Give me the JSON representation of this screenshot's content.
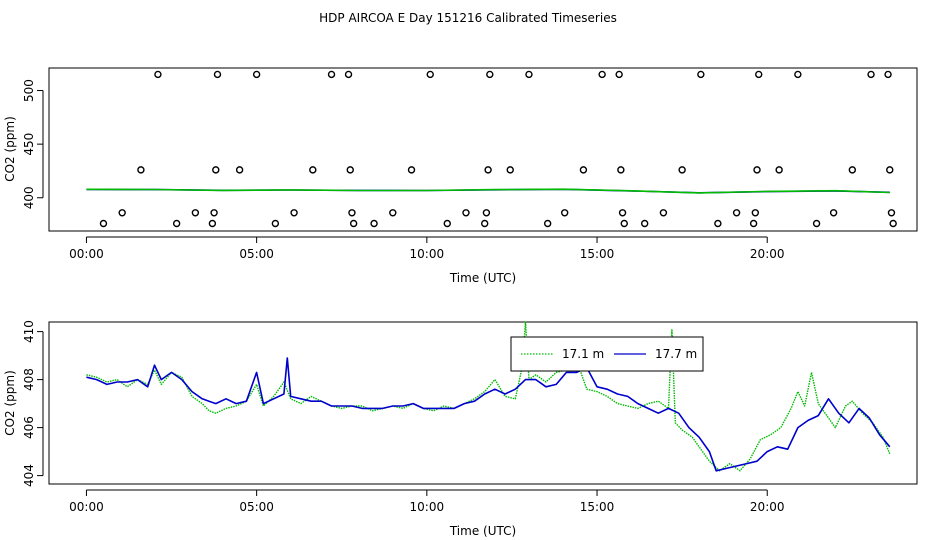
{
  "title": "HDP AIRCOA E  Day 151216  Calibrated Timeseries",
  "chart_data": [
    {
      "type": "scatter+line",
      "xlabel": "Time (UTC)",
      "ylabel": "CO2 (ppm)",
      "xlim": [
        -1.1,
        24.4
      ],
      "ylim": [
        369,
        521
      ],
      "x_ticks": [
        0,
        5,
        10,
        15,
        20
      ],
      "x_tick_labels": [
        "00:00",
        "05:00",
        "10:00",
        "15:00",
        "20:00"
      ],
      "y_ticks": [
        400,
        450,
        500
      ],
      "y_tick_labels": [
        "400",
        "450",
        "500"
      ],
      "calibration_points": [
        {
          "x": 0.5,
          "y": 376
        },
        {
          "x": 1.05,
          "y": 386
        },
        {
          "x": 1.6,
          "y": 426
        },
        {
          "x": 2.1,
          "y": 515
        },
        {
          "x": 2.65,
          "y": 376
        },
        {
          "x": 3.2,
          "y": 386
        },
        {
          "x": 3.7,
          "y": 376
        },
        {
          "x": 3.75,
          "y": 386
        },
        {
          "x": 3.8,
          "y": 426
        },
        {
          "x": 3.85,
          "y": 515
        },
        {
          "x": 4.5,
          "y": 426
        },
        {
          "x": 5.0,
          "y": 515
        },
        {
          "x": 5.55,
          "y": 376
        },
        {
          "x": 6.1,
          "y": 386
        },
        {
          "x": 6.65,
          "y": 426
        },
        {
          "x": 7.2,
          "y": 515
        },
        {
          "x": 7.7,
          "y": 515
        },
        {
          "x": 7.75,
          "y": 426
        },
        {
          "x": 7.8,
          "y": 386
        },
        {
          "x": 7.85,
          "y": 376
        },
        {
          "x": 8.45,
          "y": 376
        },
        {
          "x": 9.0,
          "y": 386
        },
        {
          "x": 9.55,
          "y": 426
        },
        {
          "x": 10.1,
          "y": 515
        },
        {
          "x": 10.6,
          "y": 376
        },
        {
          "x": 11.15,
          "y": 386
        },
        {
          "x": 11.7,
          "y": 376
        },
        {
          "x": 11.75,
          "y": 386
        },
        {
          "x": 11.8,
          "y": 426
        },
        {
          "x": 11.85,
          "y": 515
        },
        {
          "x": 12.45,
          "y": 426
        },
        {
          "x": 13.0,
          "y": 515
        },
        {
          "x": 13.55,
          "y": 376
        },
        {
          "x": 14.05,
          "y": 386
        },
        {
          "x": 14.6,
          "y": 426
        },
        {
          "x": 15.15,
          "y": 515
        },
        {
          "x": 15.65,
          "y": 515
        },
        {
          "x": 15.7,
          "y": 426
        },
        {
          "x": 15.75,
          "y": 386
        },
        {
          "x": 15.8,
          "y": 376
        },
        {
          "x": 16.4,
          "y": 376
        },
        {
          "x": 16.95,
          "y": 386
        },
        {
          "x": 17.5,
          "y": 426
        },
        {
          "x": 18.05,
          "y": 515
        },
        {
          "x": 18.55,
          "y": 376
        },
        {
          "x": 19.1,
          "y": 386
        },
        {
          "x": 19.6,
          "y": 376
        },
        {
          "x": 19.65,
          "y": 386
        },
        {
          "x": 19.7,
          "y": 426
        },
        {
          "x": 19.75,
          "y": 515
        },
        {
          "x": 20.35,
          "y": 426
        },
        {
          "x": 20.9,
          "y": 515
        },
        {
          "x": 21.45,
          "y": 376
        },
        {
          "x": 21.95,
          "y": 386
        },
        {
          "x": 22.5,
          "y": 426
        },
        {
          "x": 23.05,
          "y": 515
        },
        {
          "x": 23.55,
          "y": 515
        },
        {
          "x": 23.6,
          "y": 426
        },
        {
          "x": 23.65,
          "y": 386
        },
        {
          "x": 23.7,
          "y": 376
        }
      ],
      "series": [
        {
          "name": "17.7 m",
          "color": "#0000cc",
          "x": [
            0,
            2,
            4,
            6,
            8,
            10,
            12,
            14,
            16,
            18,
            20,
            22,
            23.6
          ],
          "y": [
            407.8,
            407.6,
            407.0,
            407.2,
            406.9,
            406.8,
            407.4,
            407.9,
            406.4,
            404.6,
            405.7,
            406.4,
            405.1
          ]
        },
        {
          "name": "17.1 m",
          "color": "#00bb00",
          "x": [
            0,
            2,
            4,
            6,
            8,
            10,
            12,
            14,
            16,
            18,
            20,
            22,
            23.6
          ],
          "y": [
            407.9,
            407.7,
            406.9,
            407.3,
            406.8,
            406.8,
            407.6,
            408.0,
            406.5,
            404.5,
            405.9,
            406.6,
            404.9
          ]
        }
      ]
    },
    {
      "type": "line",
      "xlabel": "Time (UTC)",
      "ylabel": "CO2 (ppm)",
      "xlim": [
        -1.1,
        24.4
      ],
      "ylim": [
        403.65,
        410.4
      ],
      "x_ticks": [
        0,
        5,
        10,
        15,
        20
      ],
      "x_tick_labels": [
        "00:00",
        "05:00",
        "10:00",
        "15:00",
        "20:00"
      ],
      "y_ticks": [
        404,
        406,
        408,
        410
      ],
      "y_tick_labels": [
        "404",
        "406",
        "408",
        "410"
      ],
      "legend": {
        "position": "top-center",
        "entries": [
          "17.1 m",
          "17.7 m"
        ]
      },
      "series": [
        {
          "name": "17.1 m",
          "color": "#00bb00",
          "dash": "dotted",
          "x": [
            0.0,
            0.3,
            0.6,
            0.9,
            1.2,
            1.5,
            1.8,
            2.0,
            2.2,
            2.5,
            2.8,
            3.1,
            3.4,
            3.6,
            3.8,
            4.1,
            4.4,
            4.7,
            5.0,
            5.2,
            5.5,
            5.8,
            6.0,
            6.3,
            6.6,
            6.9,
            7.2,
            7.5,
            7.8,
            8.1,
            8.4,
            8.7,
            9.0,
            9.3,
            9.6,
            9.9,
            10.2,
            10.5,
            10.8,
            11.1,
            11.4,
            11.7,
            12.0,
            12.3,
            12.6,
            12.8,
            12.9,
            13.0,
            13.2,
            13.5,
            13.8,
            14.1,
            14.4,
            14.7,
            15.0,
            15.3,
            15.6,
            15.9,
            16.2,
            16.5,
            16.8,
            17.0,
            17.1,
            17.2,
            17.3,
            17.5,
            17.8,
            18.0,
            18.3,
            18.6,
            18.9,
            19.2,
            19.5,
            19.8,
            20.1,
            20.4,
            20.7,
            20.9,
            21.1,
            21.3,
            21.5,
            21.7,
            22.0,
            22.3,
            22.5,
            22.8,
            23.1,
            23.4,
            23.6
          ],
          "y": [
            408.2,
            408.1,
            407.9,
            408.0,
            407.7,
            408.0,
            407.8,
            408.4,
            407.8,
            408.3,
            408.1,
            407.3,
            407.0,
            406.7,
            406.6,
            406.8,
            406.9,
            407.1,
            407.8,
            406.9,
            407.3,
            407.9,
            407.2,
            407.0,
            407.3,
            407.1,
            406.9,
            406.8,
            406.9,
            406.9,
            406.7,
            406.8,
            406.9,
            406.8,
            407.0,
            406.8,
            406.7,
            406.9,
            406.8,
            407.0,
            407.2,
            407.5,
            408.0,
            407.3,
            407.2,
            408.5,
            410.4,
            408.0,
            408.2,
            407.9,
            408.3,
            408.4,
            408.8,
            407.6,
            407.5,
            407.3,
            407.0,
            406.9,
            406.8,
            407.0,
            407.1,
            406.9,
            406.8,
            410.1,
            406.2,
            405.9,
            405.6,
            405.2,
            404.6,
            404.2,
            404.5,
            404.2,
            404.7,
            405.5,
            405.7,
            406.0,
            406.8,
            407.5,
            406.9,
            408.3,
            407.0,
            406.6,
            406.0,
            406.9,
            407.1,
            406.6,
            406.2,
            405.6,
            404.9
          ]
        },
        {
          "name": "17.7 m",
          "color": "#0000cc",
          "dash": "solid",
          "x": [
            0.0,
            0.3,
            0.6,
            0.9,
            1.2,
            1.5,
            1.8,
            2.0,
            2.2,
            2.5,
            2.8,
            3.1,
            3.4,
            3.6,
            3.8,
            4.1,
            4.4,
            4.7,
            5.0,
            5.2,
            5.5,
            5.8,
            5.9,
            6.0,
            6.3,
            6.6,
            6.9,
            7.2,
            7.5,
            7.8,
            8.1,
            8.4,
            8.7,
            9.0,
            9.3,
            9.6,
            9.9,
            10.2,
            10.5,
            10.8,
            11.1,
            11.4,
            11.7,
            12.0,
            12.3,
            12.6,
            12.9,
            13.2,
            13.5,
            13.8,
            14.1,
            14.4,
            14.7,
            15.0,
            15.3,
            15.6,
            15.9,
            16.2,
            16.5,
            16.8,
            17.1,
            17.4,
            17.7,
            18.0,
            18.3,
            18.5,
            18.8,
            19.1,
            19.4,
            19.7,
            20.0,
            20.3,
            20.6,
            20.9,
            21.2,
            21.5,
            21.8,
            22.1,
            22.4,
            22.7,
            23.0,
            23.3,
            23.6
          ],
          "y": [
            408.1,
            408.0,
            407.8,
            407.9,
            407.9,
            408.0,
            407.7,
            408.6,
            408.0,
            408.3,
            408.0,
            407.5,
            407.2,
            407.1,
            407.0,
            407.2,
            407.0,
            407.1,
            408.3,
            407.0,
            407.2,
            407.4,
            408.9,
            407.3,
            407.2,
            407.1,
            407.1,
            406.9,
            406.9,
            406.9,
            406.8,
            406.8,
            406.8,
            406.9,
            406.9,
            407.0,
            406.8,
            406.8,
            406.8,
            406.8,
            407.0,
            407.1,
            407.4,
            407.6,
            407.4,
            407.6,
            408.0,
            408.0,
            407.7,
            407.8,
            408.3,
            408.3,
            408.5,
            407.7,
            407.6,
            407.4,
            407.3,
            407.0,
            406.8,
            406.6,
            406.8,
            406.6,
            406.0,
            405.6,
            405.0,
            404.2,
            404.3,
            404.4,
            404.5,
            404.6,
            405.0,
            405.2,
            405.1,
            406.0,
            406.3,
            406.5,
            407.2,
            406.6,
            406.2,
            406.8,
            406.4,
            405.7,
            405.2
          ]
        }
      ]
    }
  ]
}
